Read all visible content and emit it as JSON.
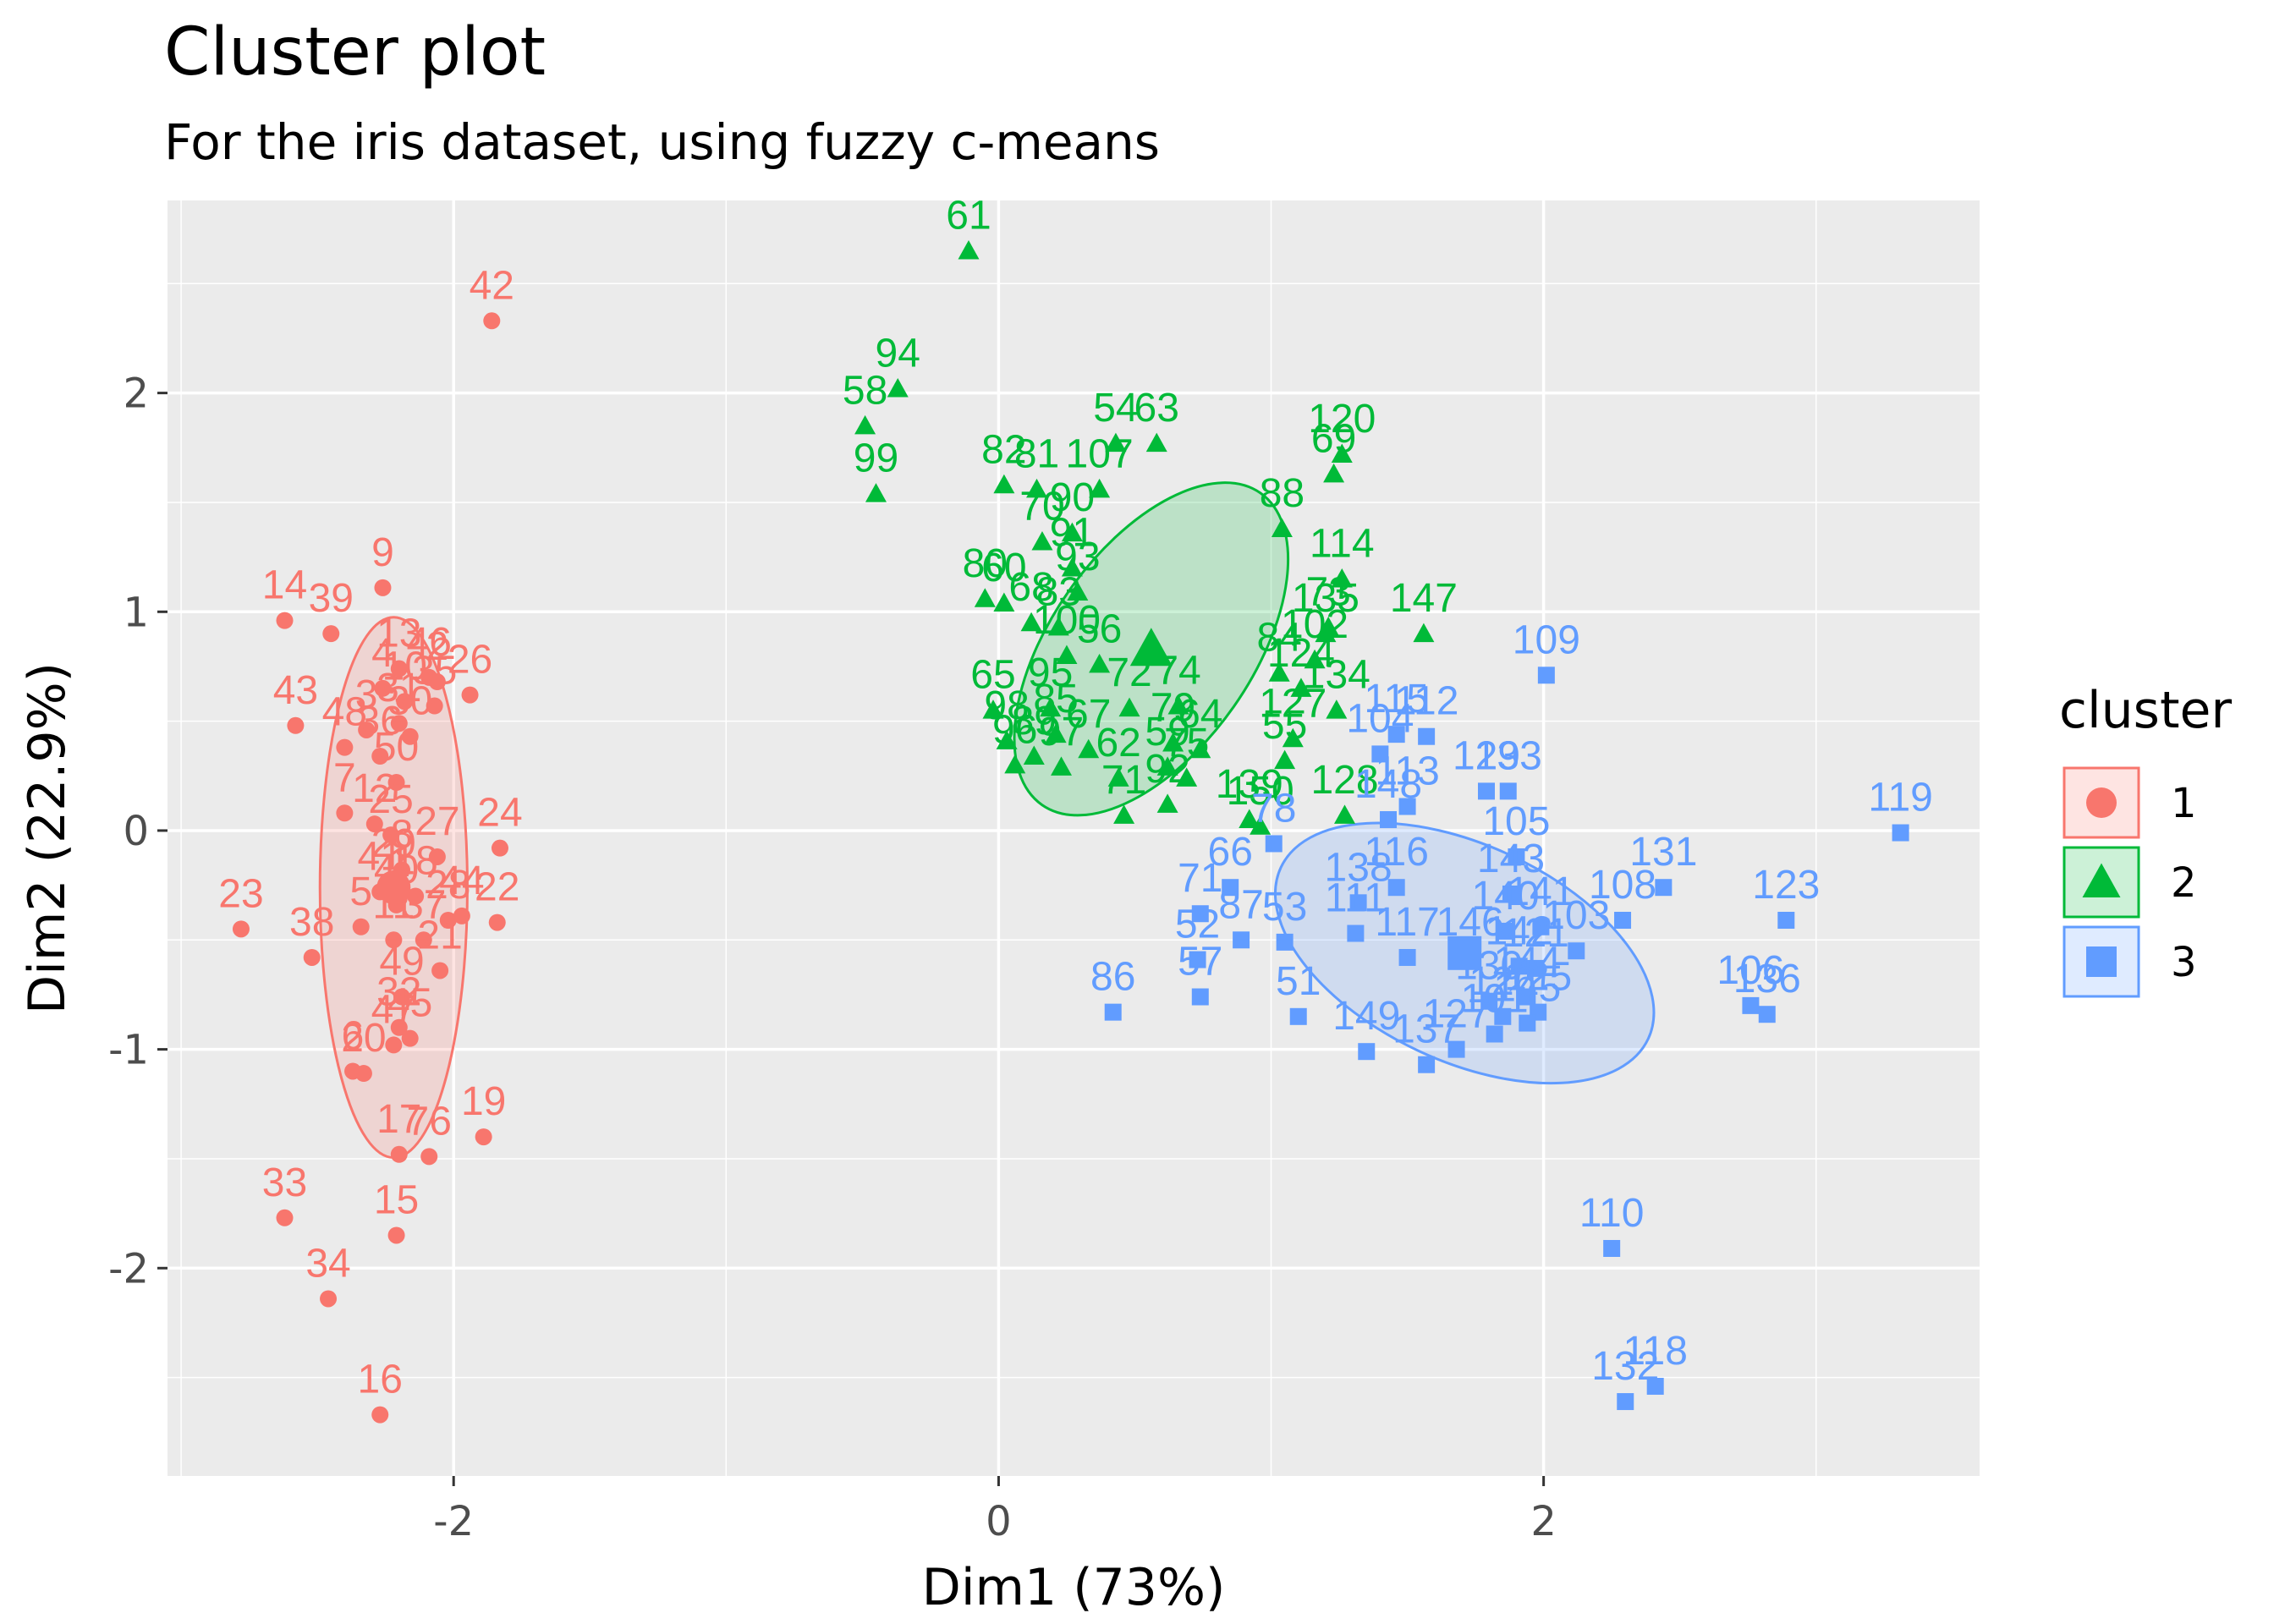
{
  "title": "Cluster plot",
  "subtitle": "For the iris dataset, using fuzzy c-means",
  "chart_data": {
    "type": "scatter",
    "title": "Cluster plot",
    "subtitle": "For the iris dataset, using fuzzy c-means",
    "xlabel": "Dim1 (73%)",
    "ylabel": "Dim2 (22.9%)",
    "xlim": [
      -3.05,
      3.6
    ],
    "ylim": [
      -2.95,
      2.88
    ],
    "xticks": [
      -2,
      0,
      2
    ],
    "xtick_labels": [
      "-2",
      "0",
      "2"
    ],
    "yticks": [
      -2,
      -1,
      0,
      1,
      2
    ],
    "ytick_labels": [
      "-2",
      "-1",
      "0",
      "1",
      "2"
    ],
    "grid": true,
    "legend": {
      "title": "cluster",
      "position": "right",
      "entries": [
        {
          "label": "1",
          "shape": "circle",
          "color": "#F8766D"
        },
        {
          "label": "2",
          "shape": "triangle",
          "color": "#00BA38"
        },
        {
          "label": "3",
          "shape": "square",
          "color": "#619CFF"
        }
      ]
    },
    "series": [
      {
        "name": "1",
        "color": "#F8766D",
        "shape": "circle",
        "center": [
          -2.22,
          -0.26
        ],
        "ellipse": {
          "semi_axes": [
            0.6,
            2.2
          ],
          "angle_deg": 90
        },
        "points": [
          {
            "label": "42",
            "x": -1.86,
            "y": 2.33
          },
          {
            "label": "9",
            "x": -2.26,
            "y": 1.11
          },
          {
            "label": "14",
            "x": -2.62,
            "y": 0.96
          },
          {
            "label": "39",
            "x": -2.45,
            "y": 0.9
          },
          {
            "label": "13",
            "x": -2.2,
            "y": 0.74
          },
          {
            "label": "46",
            "x": -2.09,
            "y": 0.7
          },
          {
            "label": "2",
            "x": -2.06,
            "y": 0.68
          },
          {
            "label": "26",
            "x": -1.94,
            "y": 0.62
          },
          {
            "label": "4",
            "x": -2.26,
            "y": 0.65
          },
          {
            "label": "10",
            "x": -2.18,
            "y": 0.59
          },
          {
            "label": "35",
            "x": -2.07,
            "y": 0.57
          },
          {
            "label": "43",
            "x": -2.58,
            "y": 0.48
          },
          {
            "label": "48",
            "x": -2.4,
            "y": 0.38
          },
          {
            "label": "31",
            "x": -2.2,
            "y": 0.49
          },
          {
            "label": "30",
            "x": -2.16,
            "y": 0.43
          },
          {
            "label": "3",
            "x": -2.32,
            "y": 0.46
          },
          {
            "label": "36",
            "x": -2.27,
            "y": 0.34
          },
          {
            "label": "50",
            "x": -2.21,
            "y": 0.22
          },
          {
            "label": "7",
            "x": -2.4,
            "y": 0.08
          },
          {
            "label": "12",
            "x": -2.29,
            "y": 0.03
          },
          {
            "label": "25",
            "x": -2.23,
            "y": -0.02
          },
          {
            "label": "24",
            "x": -1.83,
            "y": -0.08
          },
          {
            "label": "27",
            "x": -2.06,
            "y": -0.12
          },
          {
            "label": "8",
            "x": -2.19,
            "y": -0.18
          },
          {
            "label": "29",
            "x": -2.22,
            "y": -0.22
          },
          {
            "label": "23",
            "x": -2.78,
            "y": -0.45
          },
          {
            "label": "41",
            "x": -2.27,
            "y": -0.28
          },
          {
            "label": "1",
            "x": -2.2,
            "y": -0.31
          },
          {
            "label": "18",
            "x": -2.14,
            "y": -0.3
          },
          {
            "label": "40",
            "x": -2.21,
            "y": -0.34
          },
          {
            "label": "28",
            "x": -2.02,
            "y": -0.41
          },
          {
            "label": "44",
            "x": -1.97,
            "y": -0.39
          },
          {
            "label": "22",
            "x": -1.84,
            "y": -0.42
          },
          {
            "label": "38",
            "x": -2.52,
            "y": -0.58
          },
          {
            "label": "5",
            "x": -2.34,
            "y": -0.44
          },
          {
            "label": "11",
            "x": -2.22,
            "y": -0.5
          },
          {
            "label": "37",
            "x": -2.11,
            "y": -0.5
          },
          {
            "label": "21",
            "x": -2.05,
            "y": -0.64
          },
          {
            "label": "49",
            "x": -2.19,
            "y": -0.76
          },
          {
            "label": "32",
            "x": -2.2,
            "y": -0.9
          },
          {
            "label": "47",
            "x": -2.22,
            "y": -0.98
          },
          {
            "label": "45",
            "x": -2.16,
            "y": -0.95
          },
          {
            "label": "20",
            "x": -2.33,
            "y": -1.11
          },
          {
            "label": "6",
            "x": -2.37,
            "y": -1.1
          },
          {
            "label": "17",
            "x": -2.2,
            "y": -1.48
          },
          {
            "label": "19",
            "x": -1.89,
            "y": -1.4
          },
          {
            "label": "76",
            "x": -2.09,
            "y": -1.49
          },
          {
            "label": "15",
            "x": -2.21,
            "y": -1.85
          },
          {
            "label": "33",
            "x": -2.62,
            "y": -1.77
          },
          {
            "label": "34",
            "x": -2.46,
            "y": -2.14
          },
          {
            "label": "16",
            "x": -2.27,
            "y": -2.67
          }
        ]
      },
      {
        "name": "2",
        "color": "#00BA38",
        "shape": "triangle",
        "center": [
          0.56,
          0.83
        ],
        "ellipse": {
          "semi_axes": [
            0.82,
            1.55
          ],
          "angle_deg": 55
        },
        "points": [
          {
            "label": "61",
            "x": -0.11,
            "y": 2.65
          },
          {
            "label": "94",
            "x": -0.37,
            "y": 2.02
          },
          {
            "label": "58",
            "x": -0.49,
            "y": 1.85
          },
          {
            "label": "99",
            "x": -0.45,
            "y": 1.54
          },
          {
            "label": "54",
            "x": 0.43,
            "y": 1.77
          },
          {
            "label": "63",
            "x": 0.58,
            "y": 1.77
          },
          {
            "label": "120",
            "x": 1.26,
            "y": 1.72
          },
          {
            "label": "69",
            "x": 1.23,
            "y": 1.63
          },
          {
            "label": "82",
            "x": 0.02,
            "y": 1.58
          },
          {
            "label": "81",
            "x": 0.14,
            "y": 1.56
          },
          {
            "label": "107",
            "x": 0.37,
            "y": 1.56
          },
          {
            "label": "88",
            "x": 1.04,
            "y": 1.38
          },
          {
            "label": "70",
            "x": 0.16,
            "y": 1.32
          },
          {
            "label": "90",
            "x": 0.27,
            "y": 1.36
          },
          {
            "label": "114",
            "x": 1.26,
            "y": 1.15
          },
          {
            "label": "91",
            "x": 0.27,
            "y": 1.2
          },
          {
            "label": "93",
            "x": 0.29,
            "y": 1.09
          },
          {
            "label": "80",
            "x": -0.05,
            "y": 1.06
          },
          {
            "label": "60",
            "x": 0.02,
            "y": 1.04
          },
          {
            "label": "68",
            "x": 0.12,
            "y": 0.95
          },
          {
            "label": "83",
            "x": 0.22,
            "y": 0.93
          },
          {
            "label": "73",
            "x": 1.21,
            "y": 0.93
          },
          {
            "label": "147",
            "x": 1.56,
            "y": 0.9
          },
          {
            "label": "135",
            "x": 1.2,
            "y": 0.9
          },
          {
            "label": "102",
            "x": 1.16,
            "y": 0.78
          },
          {
            "label": "84",
            "x": 1.03,
            "y": 0.72
          },
          {
            "label": "100",
            "x": 0.25,
            "y": 0.8
          },
          {
            "label": "56",
            "x": 0.37,
            "y": 0.76
          },
          {
            "label": "124",
            "x": 1.11,
            "y": 0.65
          },
          {
            "label": "134",
            "x": 1.24,
            "y": 0.55
          },
          {
            "label": "65",
            "x": -0.02,
            "y": 0.55
          },
          {
            "label": "95",
            "x": 0.19,
            "y": 0.56
          },
          {
            "label": "72",
            "x": 0.48,
            "y": 0.56
          },
          {
            "label": "74",
            "x": 0.66,
            "y": 0.57
          },
          {
            "label": "127",
            "x": 1.08,
            "y": 0.42
          },
          {
            "label": "55",
            "x": 1.05,
            "y": 0.32
          },
          {
            "label": "98",
            "x": 0.03,
            "y": 0.41
          },
          {
            "label": "85",
            "x": 0.21,
            "y": 0.44
          },
          {
            "label": "67",
            "x": 0.33,
            "y": 0.37
          },
          {
            "label": "79",
            "x": 0.64,
            "y": 0.4
          },
          {
            "label": "64",
            "x": 0.74,
            "y": 0.37
          },
          {
            "label": "96",
            "x": 0.06,
            "y": 0.3
          },
          {
            "label": "89",
            "x": 0.13,
            "y": 0.34
          },
          {
            "label": "97",
            "x": 0.23,
            "y": 0.29
          },
          {
            "label": "62",
            "x": 0.44,
            "y": 0.24
          },
          {
            "label": "59",
            "x": 0.62,
            "y": 0.29
          },
          {
            "label": "75",
            "x": 0.69,
            "y": 0.24
          },
          {
            "label": "92",
            "x": 0.62,
            "y": 0.12
          },
          {
            "label": "150",
            "x": 0.96,
            "y": 0.02
          },
          {
            "label": "139",
            "x": 0.92,
            "y": 0.05
          },
          {
            "label": "71",
            "x": 0.46,
            "y": 0.07
          },
          {
            "label": "128",
            "x": 1.27,
            "y": 0.07
          }
        ]
      },
      {
        "name": "3",
        "color": "#619CFF",
        "shape": "square",
        "center": [
          1.71,
          -0.56
        ],
        "ellipse": {
          "semi_axes": [
            0.88,
            1.65
          ],
          "angle_deg": -25
        },
        "points": [
          {
            "label": "109",
            "x": 2.01,
            "y": 0.71
          },
          {
            "label": "119",
            "x": 3.31,
            "y": -0.01
          },
          {
            "label": "115",
            "x": 1.46,
            "y": 0.44
          },
          {
            "label": "112",
            "x": 1.57,
            "y": 0.43
          },
          {
            "label": "104",
            "x": 1.4,
            "y": 0.35
          },
          {
            "label": "129",
            "x": 1.79,
            "y": 0.18
          },
          {
            "label": "133",
            "x": 1.87,
            "y": 0.18
          },
          {
            "label": "131",
            "x": 2.44,
            "y": -0.26
          },
          {
            "label": "123",
            "x": 2.89,
            "y": -0.41
          },
          {
            "label": "78",
            "x": 1.01,
            "y": -0.06
          },
          {
            "label": "148",
            "x": 1.43,
            "y": 0.05
          },
          {
            "label": "113",
            "x": 1.5,
            "y": 0.11
          },
          {
            "label": "116",
            "x": 1.46,
            "y": -0.26
          },
          {
            "label": "105",
            "x": 1.9,
            "y": -0.12
          },
          {
            "label": "143",
            "x": 1.88,
            "y": -0.29
          },
          {
            "label": "108",
            "x": 2.29,
            "y": -0.41
          },
          {
            "label": "138",
            "x": 1.32,
            "y": -0.33
          },
          {
            "label": "111",
            "x": 1.31,
            "y": -0.47
          },
          {
            "label": "117",
            "x": 1.5,
            "y": -0.58
          },
          {
            "label": "140",
            "x": 1.86,
            "y": -0.46
          },
          {
            "label": "141",
            "x": 1.99,
            "y": -0.44
          },
          {
            "label": "103",
            "x": 2.12,
            "y": -0.55
          },
          {
            "label": "146",
            "x": 1.73,
            "y": -0.58
          },
          {
            "label": "142",
            "x": 1.91,
            "y": -0.62
          },
          {
            "label": "121",
            "x": 1.97,
            "y": -0.63
          },
          {
            "label": "144",
            "x": 1.94,
            "y": -0.76
          },
          {
            "label": "125",
            "x": 1.98,
            "y": -0.83
          },
          {
            "label": "145",
            "x": 1.94,
            "y": -0.88
          },
          {
            "label": "130",
            "x": 1.8,
            "y": -0.78
          },
          {
            "label": "126",
            "x": 1.85,
            "y": -0.85
          },
          {
            "label": "106",
            "x": 2.76,
            "y": -0.8
          },
          {
            "label": "136",
            "x": 2.82,
            "y": -0.84
          },
          {
            "label": "101",
            "x": 1.82,
            "y": -0.93
          },
          {
            "label": "86",
            "x": 0.42,
            "y": -0.83
          },
          {
            "label": "71",
            "x": 0.74,
            "y": -0.38
          },
          {
            "label": "66",
            "x": 0.85,
            "y": -0.26
          },
          {
            "label": "52",
            "x": 0.73,
            "y": -0.59
          },
          {
            "label": "57",
            "x": 0.74,
            "y": -0.76
          },
          {
            "label": "87",
            "x": 0.89,
            "y": -0.5
          },
          {
            "label": "53",
            "x": 1.05,
            "y": -0.51
          },
          {
            "label": "51",
            "x": 1.1,
            "y": -0.85
          },
          {
            "label": "149",
            "x": 1.35,
            "y": -1.01
          },
          {
            "label": "137",
            "x": 1.57,
            "y": -1.07
          },
          {
            "label": "127",
            "x": 1.68,
            "y": -1.0
          },
          {
            "label": "110",
            "x": 2.25,
            "y": -1.91
          },
          {
            "label": "132",
            "x": 2.3,
            "y": -2.61
          },
          {
            "label": "118",
            "x": 2.41,
            "y": -2.54
          }
        ]
      }
    ]
  }
}
